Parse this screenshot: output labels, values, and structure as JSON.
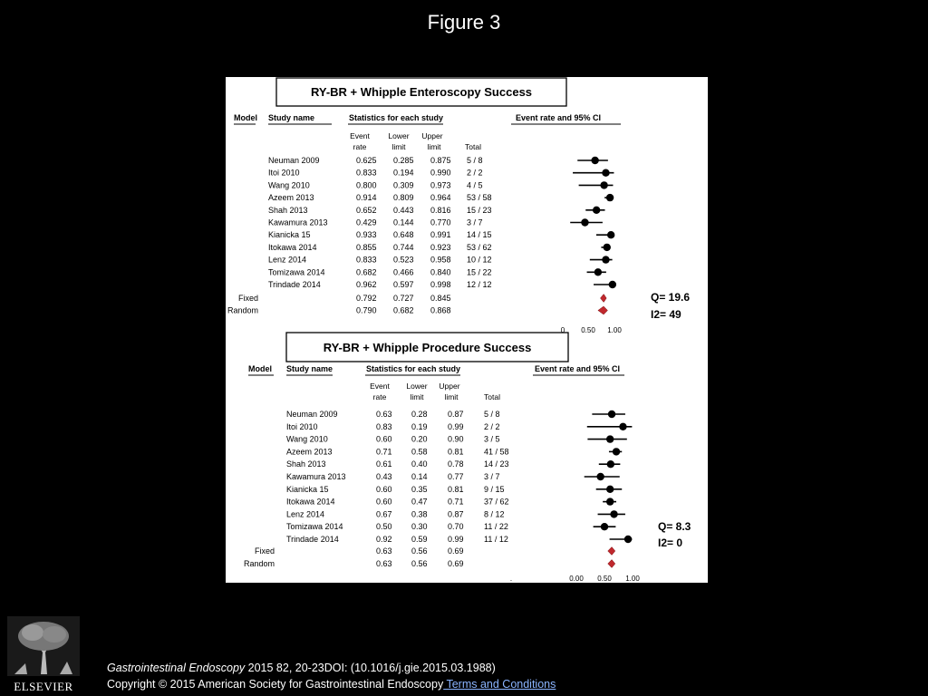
{
  "slide": {
    "title": "Figure 3"
  },
  "footer": {
    "journal": "Gastrointestinal Endoscopy",
    "details": " 2015 82, 20-23DOI: (10.1016/j.gie.2015.03.1988)",
    "copyright": "Copyright © 2015 American Society for Gastrointestinal Endoscopy",
    "link": " Terms and Conditions"
  },
  "logo": {
    "text": "ELSEVIER",
    "icon": "elsevier-tree-icon"
  },
  "chart_data": [
    {
      "type": "forest",
      "title": "RY-BR + Whipple Enteroscopy Success",
      "headers": {
        "model": "Model",
        "study": "Study name",
        "stats": "Statistics for each study",
        "plot": "Event rate and 95% CI",
        "event1": "Event",
        "event2": "rate",
        "lower1": "Lower",
        "lower2": "limit",
        "upper1": "Upper",
        "upper2": "limit",
        "total": "Total"
      },
      "studies": [
        {
          "name": "Neuman 2009",
          "rate": "0.625",
          "lower": "0.285",
          "upper": "0.875",
          "total": "5 / 8"
        },
        {
          "name": "Itoi 2010",
          "rate": "0.833",
          "lower": "0.194",
          "upper": "0.990",
          "total": "2 / 2"
        },
        {
          "name": "Wang 2010",
          "rate": "0.800",
          "lower": "0.309",
          "upper": "0.973",
          "total": "4 / 5"
        },
        {
          "name": "Azeem 2013",
          "rate": "0.914",
          "lower": "0.809",
          "upper": "0.964",
          "total": "53 / 58"
        },
        {
          "name": "Shah 2013",
          "rate": "0.652",
          "lower": "0.443",
          "upper": "0.816",
          "total": "15 / 23"
        },
        {
          "name": "Kawamura 2013",
          "rate": "0.429",
          "lower": "0.144",
          "upper": "0.770",
          "total": "3 / 7"
        },
        {
          "name": "Kianicka 15",
          "rate": "0.933",
          "lower": "0.648",
          "upper": "0.991",
          "total": "14 / 15"
        },
        {
          "name": "Itokawa 2014",
          "rate": "0.855",
          "lower": "0.744",
          "upper": "0.923",
          "total": "53 / 62"
        },
        {
          "name": "Lenz 2014",
          "rate": "0.833",
          "lower": "0.523",
          "upper": "0.958",
          "total": "10 / 12"
        },
        {
          "name": "Tomizawa 2014",
          "rate": "0.682",
          "lower": "0.466",
          "upper": "0.840",
          "total": "15 / 22"
        },
        {
          "name": "Trindade 2014",
          "rate": "0.962",
          "lower": "0.597",
          "upper": "0.998",
          "total": "12 / 12"
        }
      ],
      "pooled": [
        {
          "name": "Fixed",
          "rate": "0.792",
          "lower": "0.727",
          "upper": "0.845"
        },
        {
          "name": "Random",
          "rate": "0.790",
          "lower": "0.682",
          "upper": "0.868"
        }
      ],
      "stats": {
        "q": "Q= 19.6",
        "i2": "I2= 49"
      },
      "axis": {
        "ticks": [
          {
            "value": 0,
            "label": "0"
          },
          {
            "value": 0.5,
            "label": "0.50"
          },
          {
            "value": 1,
            "label": "1.00"
          }
        ],
        "range": [
          0,
          1
        ]
      },
      "marker_color": "#000000",
      "pooled_color": "#c0282d"
    },
    {
      "type": "forest",
      "title": "RY-BR + Whipple Procedure Success",
      "headers": {
        "model": "Model",
        "study": "Study name",
        "stats": "Statistics for each study",
        "plot": "Event rate and 95% CI",
        "event1": "Event",
        "event2": "rate",
        "lower1": "Lower",
        "lower2": "limit",
        "upper1": "Upper",
        "upper2": "limit",
        "total": "Total"
      },
      "studies": [
        {
          "name": "Neuman 2009",
          "rate": "0.63",
          "lower": "0.28",
          "upper": "0.87",
          "total": "5 / 8"
        },
        {
          "name": "Itoi 2010",
          "rate": "0.83",
          "lower": "0.19",
          "upper": "0.99",
          "total": "2 / 2"
        },
        {
          "name": "Wang 2010",
          "rate": "0.60",
          "lower": "0.20",
          "upper": "0.90",
          "total": "3 / 5"
        },
        {
          "name": "Azeem 2013",
          "rate": "0.71",
          "lower": "0.58",
          "upper": "0.81",
          "total": "41 / 58"
        },
        {
          "name": "Shah 2013",
          "rate": "0.61",
          "lower": "0.40",
          "upper": "0.78",
          "total": "14 / 23"
        },
        {
          "name": "Kawamura 2013",
          "rate": "0.43",
          "lower": "0.14",
          "upper": "0.77",
          "total": "3 / 7"
        },
        {
          "name": "Kianicka 15",
          "rate": "0.60",
          "lower": "0.35",
          "upper": "0.81",
          "total": "9 / 15"
        },
        {
          "name": "Itokawa 2014",
          "rate": "0.60",
          "lower": "0.47",
          "upper": "0.71",
          "total": "37 / 62"
        },
        {
          "name": "Lenz 2014",
          "rate": "0.67",
          "lower": "0.38",
          "upper": "0.87",
          "total": "8 / 12"
        },
        {
          "name": "Tomizawa 2014",
          "rate": "0.50",
          "lower": "0.30",
          "upper": "0.70",
          "total": "11 / 22"
        },
        {
          "name": "Trindade 2014",
          "rate": "0.92",
          "lower": "0.59",
          "upper": "0.99",
          "total": "11 / 12"
        }
      ],
      "pooled": [
        {
          "name": "Fixed",
          "rate": "0.63",
          "lower": "0.56",
          "upper": "0.69"
        },
        {
          "name": "Random",
          "rate": "0.63",
          "lower": "0.56",
          "upper": "0.69"
        }
      ],
      "stats": {
        "q": "Q= 8.3",
        "i2": "I2= 0"
      },
      "axis": {
        "ticks": [
          {
            "value": -1,
            "label": "."
          },
          {
            "value": 0,
            "label": "0.00"
          },
          {
            "value": 0.5,
            "label": "0.50"
          },
          {
            "value": 1,
            "label": "1.00"
          }
        ],
        "range": [
          0,
          1
        ]
      },
      "marker_color": "#000000",
      "pooled_color": "#c0282d"
    }
  ]
}
